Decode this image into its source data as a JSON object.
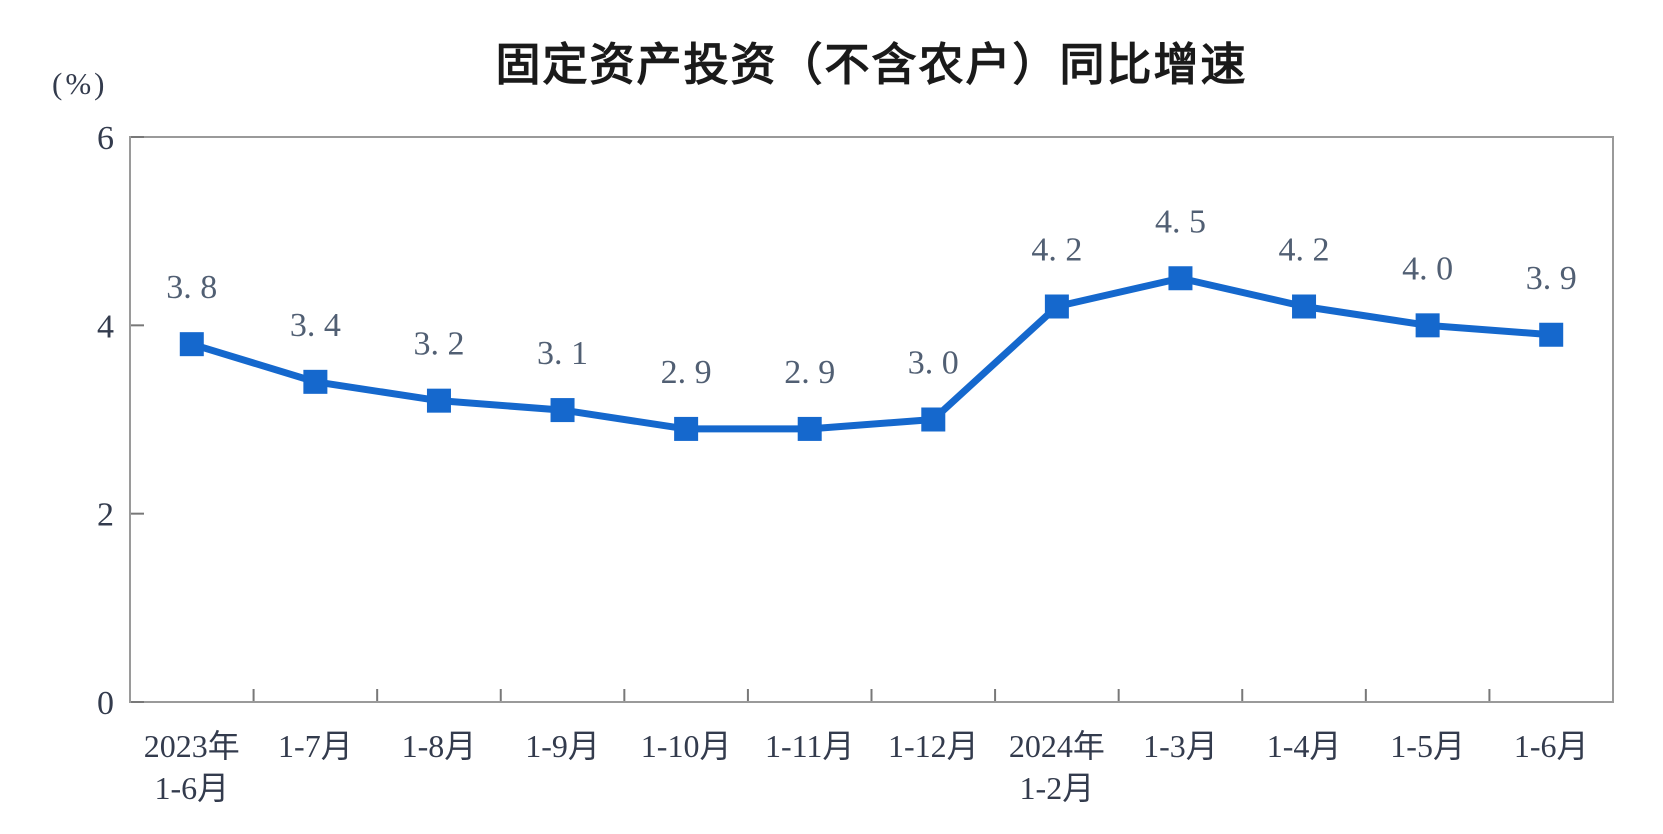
{
  "figure": {
    "background": "#ffffff"
  },
  "chart_data": {
    "type": "line",
    "title": "固定资产投资（不含农户）同比增速",
    "unit": "(%)",
    "categories": [
      {
        "line1": "2023年",
        "line2": "1-6月"
      },
      {
        "line1": "1-7月"
      },
      {
        "line1": "1-8月"
      },
      {
        "line1": "1-9月"
      },
      {
        "line1": "1-10月"
      },
      {
        "line1": "1-11月"
      },
      {
        "line1": "1-12月"
      },
      {
        "line1": "2024年",
        "line2": "1-2月"
      },
      {
        "line1": "1-3月"
      },
      {
        "line1": "1-4月"
      },
      {
        "line1": "1-5月"
      },
      {
        "line1": "1-6月"
      }
    ],
    "series": [
      {
        "name": "固定资产投资（不含农户）同比增速",
        "values": [
          3.8,
          3.4,
          3.2,
          3.1,
          2.9,
          2.9,
          3.0,
          4.2,
          4.5,
          4.2,
          4.0,
          3.9
        ],
        "point_labels": [
          "3. 8",
          "3. 4",
          "3. 2",
          "3. 1",
          "2. 9",
          "2. 9",
          "3. 0",
          "4. 2",
          "4. 5",
          "4. 2",
          "4. 0",
          "3. 9"
        ]
      }
    ],
    "ylim": [
      0,
      6
    ],
    "yticks": [
      0,
      2,
      4,
      6
    ],
    "grid": false,
    "legend": "none",
    "marker": "square",
    "colors": {
      "line": "#1568cd",
      "marker": "#1568cd",
      "plot_border": "#9a9a9a",
      "tick": "#787878",
      "axis_label_text": "#333b4d",
      "point_label_text": "#515f73",
      "title_text": "#1a1a1a"
    }
  }
}
